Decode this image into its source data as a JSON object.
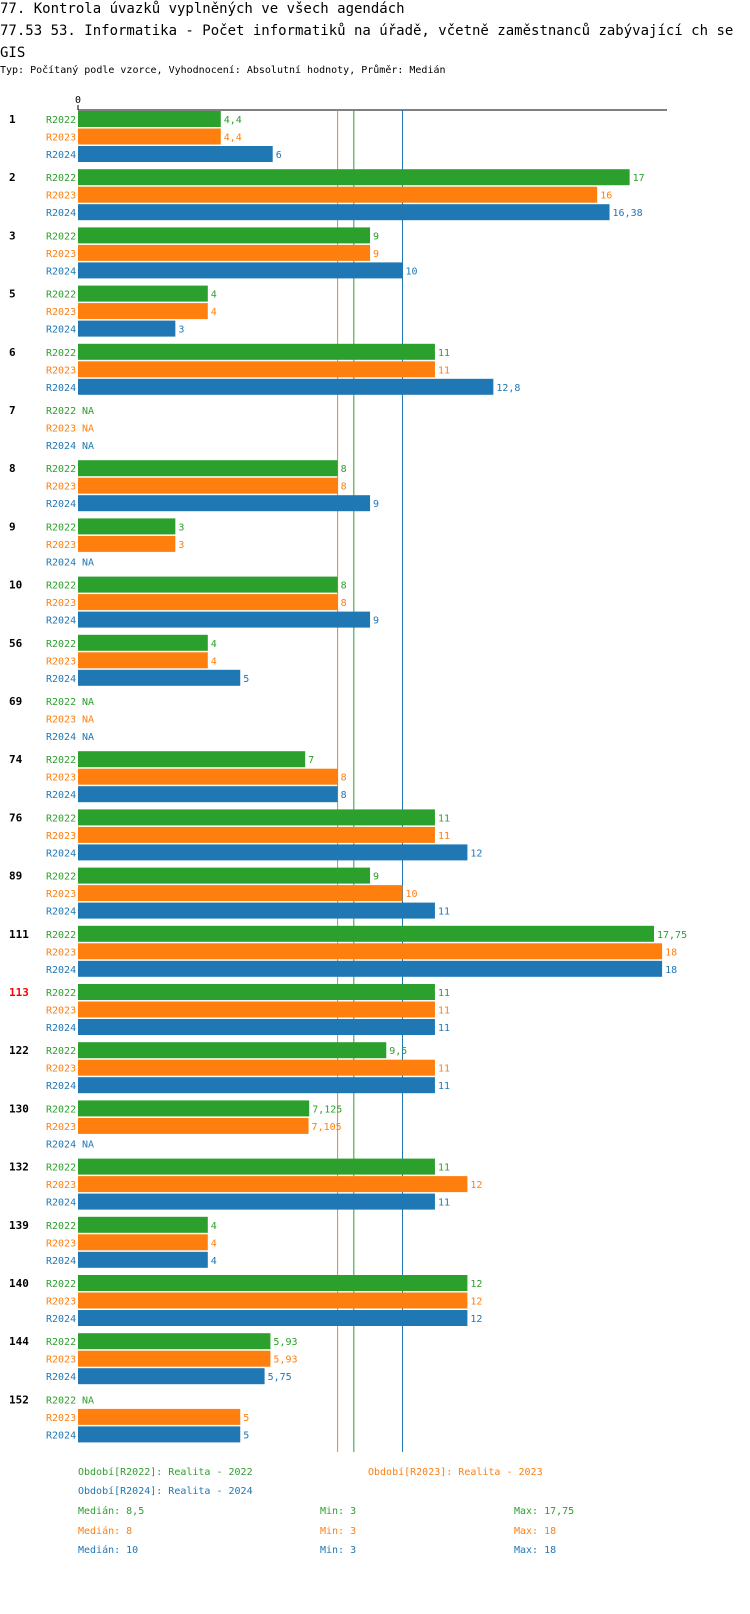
{
  "header": {
    "title": "77. Kontrola úvazků vyplněných ve všech agendách",
    "subtitle": "77.53 53. Informatika - Počet informatiků na úřadě, včetně zaměstnanců zabývající ch se GIS",
    "type_line": "Typ: Počítaný podle vzorce, Vyhodnocení: Absolutní hodnoty, Průměr: Medián"
  },
  "colors": {
    "R2022": "#2ca02c",
    "R2023": "#ff7f0e",
    "R2024": "#1f77b4",
    "highlight": "#ff0000"
  },
  "chart_data": {
    "type": "bar",
    "orientation": "horizontal",
    "axis_zero_label": "0",
    "xlim": [
      0,
      18.3
    ],
    "series_names": [
      "R2022",
      "R2023",
      "R2024"
    ],
    "na_label": "NA",
    "highlight_category": "113",
    "categories": [
      {
        "id": "1",
        "values": [
          4.4,
          4.4,
          6
        ],
        "labels": [
          "4,4",
          "4,4",
          "6"
        ]
      },
      {
        "id": "2",
        "values": [
          17,
          16,
          16.38
        ],
        "labels": [
          "17",
          "16",
          "16,38"
        ]
      },
      {
        "id": "3",
        "values": [
          9,
          9,
          10
        ],
        "labels": [
          "9",
          "9",
          "10"
        ]
      },
      {
        "id": "5",
        "values": [
          4,
          4,
          3
        ],
        "labels": [
          "4",
          "4",
          "3"
        ]
      },
      {
        "id": "6",
        "values": [
          11,
          11,
          12.8
        ],
        "labels": [
          "11",
          "11",
          "12,8"
        ]
      },
      {
        "id": "7",
        "values": [
          null,
          null,
          null
        ],
        "labels": [
          "NA",
          "NA",
          "NA"
        ]
      },
      {
        "id": "8",
        "values": [
          8,
          8,
          9
        ],
        "labels": [
          "8",
          "8",
          "9"
        ]
      },
      {
        "id": "9",
        "values": [
          3,
          3,
          null
        ],
        "labels": [
          "3",
          "3",
          "NA"
        ]
      },
      {
        "id": "10",
        "values": [
          8,
          8,
          9
        ],
        "labels": [
          "8",
          "8",
          "9"
        ]
      },
      {
        "id": "56",
        "values": [
          4,
          4,
          5
        ],
        "labels": [
          "4",
          "4",
          "5"
        ]
      },
      {
        "id": "69",
        "values": [
          null,
          null,
          null
        ],
        "labels": [
          "NA",
          "NA",
          "NA"
        ]
      },
      {
        "id": "74",
        "values": [
          7,
          8,
          8
        ],
        "labels": [
          "7",
          "8",
          "8"
        ]
      },
      {
        "id": "76",
        "values": [
          11,
          11,
          12
        ],
        "labels": [
          "11",
          "11",
          "12"
        ]
      },
      {
        "id": "89",
        "values": [
          9,
          10,
          11
        ],
        "labels": [
          "9",
          "10",
          "11"
        ]
      },
      {
        "id": "111",
        "values": [
          17.75,
          18,
          18
        ],
        "labels": [
          "17,75",
          "18",
          "18"
        ]
      },
      {
        "id": "113",
        "values": [
          11,
          11,
          11
        ],
        "labels": [
          "11",
          "11",
          "11"
        ]
      },
      {
        "id": "122",
        "values": [
          9.5,
          11,
          11
        ],
        "labels": [
          "9,5",
          "11",
          "11"
        ]
      },
      {
        "id": "130",
        "values": [
          7.125,
          7.105,
          null
        ],
        "labels": [
          "7,125",
          "7,105",
          "NA"
        ]
      },
      {
        "id": "132",
        "values": [
          11,
          12,
          11
        ],
        "labels": [
          "11",
          "12",
          "11"
        ]
      },
      {
        "id": "139",
        "values": [
          4,
          4,
          4
        ],
        "labels": [
          "4",
          "4",
          "4"
        ]
      },
      {
        "id": "140",
        "values": [
          12,
          12,
          12
        ],
        "labels": [
          "12",
          "12",
          "12"
        ]
      },
      {
        "id": "144",
        "values": [
          5.93,
          5.93,
          5.75
        ],
        "labels": [
          "5,93",
          "5,93",
          "5,75"
        ]
      },
      {
        "id": "152",
        "values": [
          null,
          5,
          5
        ],
        "labels": [
          "NA",
          "5",
          "5"
        ]
      }
    ],
    "reference_lines": [
      {
        "series": "R2023",
        "value": 8
      },
      {
        "series": "R2022",
        "value": 8.5
      },
      {
        "series": "R2024",
        "value": 10
      }
    ]
  },
  "legend": {
    "r2022": "Období[R2022]: Realita - 2022",
    "r2023": "Období[R2023]: Realita - 2023",
    "r2024": "Období[R2024]: Realita - 2024"
  },
  "stats": [
    {
      "median": "Medián: 8,5",
      "min": "Min: 3",
      "max": "Max: 17,75"
    },
    {
      "median": "Medián: 8",
      "min": "Min: 3",
      "max": "Max: 18"
    },
    {
      "median": "Medián: 10",
      "min": "Min: 3",
      "max": "Max: 18"
    }
  ]
}
